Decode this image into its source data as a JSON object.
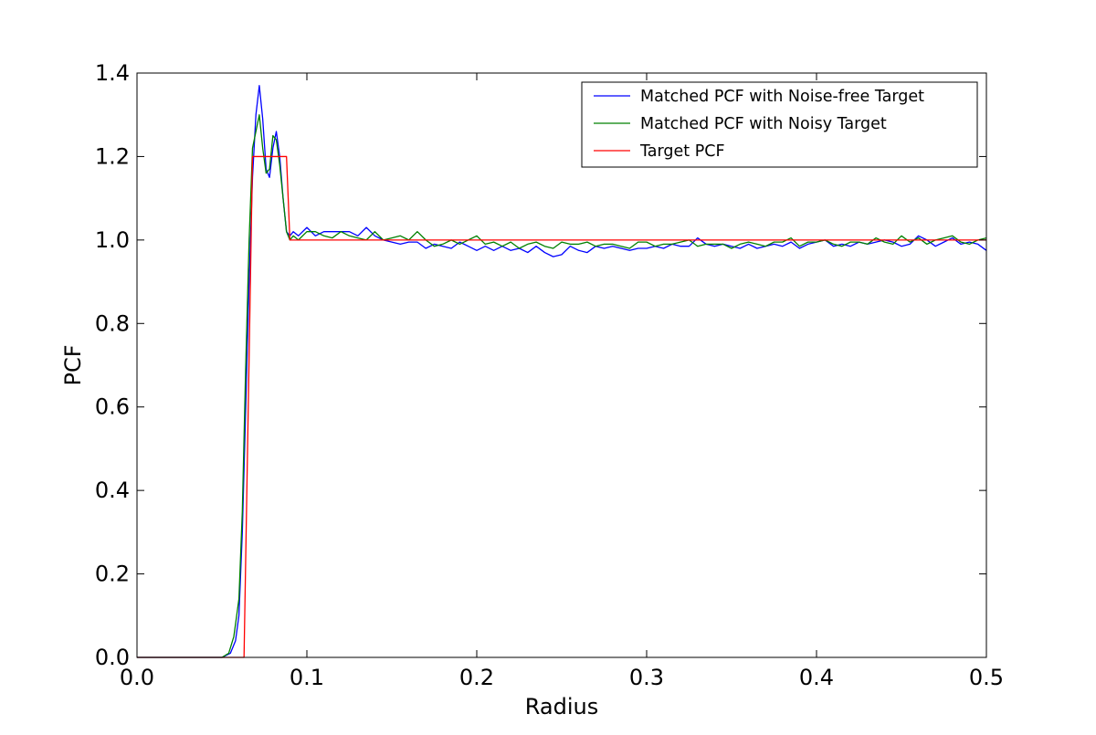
{
  "chart_data": {
    "type": "line",
    "title": "",
    "xlabel": "Radius",
    "ylabel": "PCF",
    "xlim": [
      0.0,
      0.5
    ],
    "ylim": [
      0.0,
      1.4
    ],
    "xticks": [
      0.0,
      0.1,
      0.2,
      0.3,
      0.4,
      0.5
    ],
    "xtick_labels": [
      "0.0",
      "0.1",
      "0.2",
      "0.3",
      "0.4",
      "0.5"
    ],
    "yticks": [
      0.0,
      0.2,
      0.4,
      0.6,
      0.8,
      1.0,
      1.2,
      1.4
    ],
    "ytick_labels": [
      "0.0",
      "0.2",
      "0.4",
      "0.6",
      "0.8",
      "1.0",
      "1.2",
      "1.4"
    ],
    "grid": false,
    "legend_position": "top-right",
    "series": [
      {
        "name": "Matched PCF with Noise-free Target",
        "color": "#0000ff",
        "x": [
          0.0,
          0.05,
          0.055,
          0.058,
          0.06,
          0.062,
          0.064,
          0.066,
          0.068,
          0.07,
          0.072,
          0.074,
          0.076,
          0.078,
          0.08,
          0.082,
          0.084,
          0.086,
          0.088,
          0.09,
          0.092,
          0.095,
          0.1,
          0.105,
          0.11,
          0.115,
          0.12,
          0.125,
          0.13,
          0.135,
          0.14,
          0.145,
          0.15,
          0.155,
          0.16,
          0.165,
          0.17,
          0.175,
          0.18,
          0.185,
          0.19,
          0.195,
          0.2,
          0.205,
          0.21,
          0.215,
          0.22,
          0.225,
          0.23,
          0.235,
          0.24,
          0.245,
          0.25,
          0.255,
          0.26,
          0.265,
          0.27,
          0.275,
          0.28,
          0.285,
          0.29,
          0.295,
          0.3,
          0.305,
          0.31,
          0.315,
          0.32,
          0.325,
          0.33,
          0.335,
          0.34,
          0.345,
          0.35,
          0.355,
          0.36,
          0.365,
          0.37,
          0.375,
          0.38,
          0.385,
          0.39,
          0.395,
          0.4,
          0.405,
          0.41,
          0.415,
          0.42,
          0.425,
          0.43,
          0.435,
          0.44,
          0.445,
          0.45,
          0.455,
          0.46,
          0.465,
          0.47,
          0.475,
          0.48,
          0.485,
          0.49,
          0.495,
          0.5
        ],
        "y": [
          0.0,
          0.0,
          0.01,
          0.04,
          0.1,
          0.3,
          0.6,
          0.9,
          1.15,
          1.3,
          1.37,
          1.29,
          1.17,
          1.15,
          1.22,
          1.26,
          1.2,
          1.1,
          1.02,
          1.01,
          1.02,
          1.01,
          1.03,
          1.01,
          1.02,
          1.02,
          1.02,
          1.02,
          1.01,
          1.03,
          1.01,
          1.0,
          0.995,
          0.99,
          0.995,
          0.995,
          0.98,
          0.99,
          0.985,
          0.98,
          0.995,
          0.985,
          0.975,
          0.985,
          0.975,
          0.985,
          0.975,
          0.98,
          0.97,
          0.985,
          0.97,
          0.96,
          0.965,
          0.985,
          0.975,
          0.97,
          0.985,
          0.98,
          0.985,
          0.98,
          0.975,
          0.98,
          0.98,
          0.985,
          0.98,
          0.99,
          0.985,
          0.985,
          1.005,
          0.99,
          0.985,
          0.99,
          0.985,
          0.98,
          0.99,
          0.98,
          0.985,
          0.99,
          0.985,
          0.995,
          0.98,
          0.99,
          0.995,
          1.0,
          0.985,
          0.99,
          0.985,
          0.995,
          0.99,
          0.995,
          1.0,
          0.995,
          0.985,
          0.99,
          1.01,
          1.0,
          0.985,
          0.995,
          1.005,
          0.99,
          0.995,
          0.99,
          0.975
        ]
      },
      {
        "name": "Matched PCF with Noisy Target",
        "color": "#008000",
        "x": [
          0.0,
          0.05,
          0.054,
          0.057,
          0.06,
          0.062,
          0.064,
          0.066,
          0.068,
          0.07,
          0.072,
          0.074,
          0.076,
          0.078,
          0.08,
          0.082,
          0.084,
          0.086,
          0.088,
          0.09,
          0.092,
          0.095,
          0.1,
          0.105,
          0.11,
          0.115,
          0.12,
          0.125,
          0.13,
          0.135,
          0.14,
          0.145,
          0.15,
          0.155,
          0.16,
          0.165,
          0.17,
          0.175,
          0.18,
          0.185,
          0.19,
          0.195,
          0.2,
          0.205,
          0.21,
          0.215,
          0.22,
          0.225,
          0.23,
          0.235,
          0.24,
          0.245,
          0.25,
          0.255,
          0.26,
          0.265,
          0.27,
          0.275,
          0.28,
          0.285,
          0.29,
          0.295,
          0.3,
          0.305,
          0.31,
          0.315,
          0.32,
          0.325,
          0.33,
          0.335,
          0.34,
          0.345,
          0.35,
          0.355,
          0.36,
          0.365,
          0.37,
          0.375,
          0.38,
          0.385,
          0.39,
          0.395,
          0.4,
          0.405,
          0.41,
          0.415,
          0.42,
          0.425,
          0.43,
          0.435,
          0.44,
          0.445,
          0.45,
          0.455,
          0.46,
          0.465,
          0.47,
          0.475,
          0.48,
          0.485,
          0.49,
          0.495,
          0.5
        ],
        "y": [
          0.0,
          0.0,
          0.01,
          0.05,
          0.14,
          0.35,
          0.7,
          1.0,
          1.22,
          1.26,
          1.3,
          1.22,
          1.16,
          1.17,
          1.25,
          1.24,
          1.18,
          1.1,
          1.02,
          1.0,
          1.01,
          1.0,
          1.02,
          1.02,
          1.01,
          1.005,
          1.02,
          1.01,
          1.005,
          1.0,
          1.02,
          1.0,
          1.005,
          1.01,
          1.0,
          1.02,
          1.0,
          0.985,
          0.99,
          1.0,
          0.99,
          1.0,
          1.01,
          0.99,
          0.995,
          0.985,
          0.995,
          0.98,
          0.99,
          0.995,
          0.985,
          0.98,
          0.995,
          0.99,
          0.99,
          0.995,
          0.985,
          0.99,
          0.99,
          0.985,
          0.98,
          0.995,
          0.995,
          0.985,
          0.99,
          0.99,
          0.995,
          1.0,
          0.985,
          0.99,
          0.99,
          0.99,
          0.98,
          0.99,
          0.995,
          0.99,
          0.985,
          0.995,
          0.995,
          1.005,
          0.985,
          0.995,
          0.995,
          1.0,
          0.99,
          0.985,
          0.995,
          0.995,
          0.99,
          1.005,
          0.995,
          0.99,
          1.01,
          0.995,
          1.005,
          0.99,
          1.0,
          1.005,
          1.01,
          0.995,
          0.99,
          1.0,
          1.005
        ]
      },
      {
        "name": "Target PCF",
        "color": "#ff0000",
        "x": [
          0.0,
          0.063,
          0.068,
          0.068,
          0.088,
          0.09,
          0.5
        ],
        "y": [
          0.0,
          0.0,
          1.2,
          1.2,
          1.2,
          1.0,
          1.0
        ]
      }
    ]
  }
}
